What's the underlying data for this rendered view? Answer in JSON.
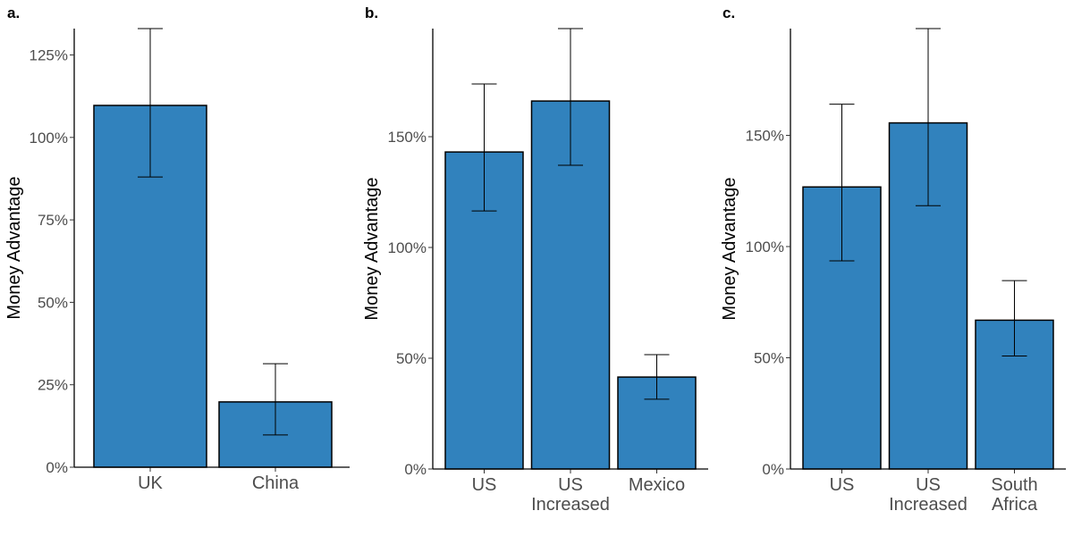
{
  "figure": {
    "bar_color": "#3182bd",
    "bar_stroke": "#000000",
    "axis_color": "#000000"
  },
  "chart_data": [
    {
      "type": "bar",
      "panel_label": "a.",
      "title": "",
      "xlabel": "",
      "ylabel": "Money Advantage",
      "categories": [
        [
          "UK"
        ],
        [
          "China"
        ]
      ],
      "values": [
        109.7,
        19.8
      ],
      "error_low": [
        88.0,
        9.8
      ],
      "error_high": [
        133.0,
        31.4
      ],
      "yticks": [
        0,
        25,
        50,
        75,
        100,
        125
      ],
      "ytick_labels": [
        "0%",
        "25%",
        "50%",
        "75%",
        "100%",
        "125%"
      ],
      "ylim": [
        0,
        133
      ],
      "grid": false,
      "legend": "none"
    },
    {
      "type": "bar",
      "panel_label": "b.",
      "title": "",
      "xlabel": "",
      "ylabel": "Money Advantage",
      "categories": [
        [
          "US"
        ],
        [
          "US",
          "Increased"
        ],
        [
          "Mexico"
        ]
      ],
      "values": [
        143.1,
        166.1,
        41.5
      ],
      "error_low": [
        116.5,
        137.1,
        31.5
      ],
      "error_high": [
        173.8,
        198.8,
        51.6
      ],
      "yticks": [
        0,
        50,
        100,
        150
      ],
      "ytick_labels": [
        "0%",
        "50%",
        "100%",
        "150%"
      ],
      "ylim": [
        0,
        198.8
      ],
      "grid": false,
      "legend": "none"
    },
    {
      "type": "bar",
      "panel_label": "c.",
      "title": "",
      "xlabel": "",
      "ylabel": "Money Advantage",
      "categories": [
        [
          "US"
        ],
        [
          "US",
          "Increased"
        ],
        [
          "South",
          "Africa"
        ]
      ],
      "values": [
        126.8,
        155.6,
        66.9
      ],
      "error_low": [
        93.6,
        118.4,
        50.8
      ],
      "error_high": [
        164.0,
        198.0,
        84.7
      ],
      "yticks": [
        0,
        50,
        100,
        150
      ],
      "ytick_labels": [
        "0%",
        "50%",
        "100%",
        "150%"
      ],
      "ylim": [
        0,
        198.0
      ],
      "grid": false,
      "legend": "none"
    }
  ]
}
